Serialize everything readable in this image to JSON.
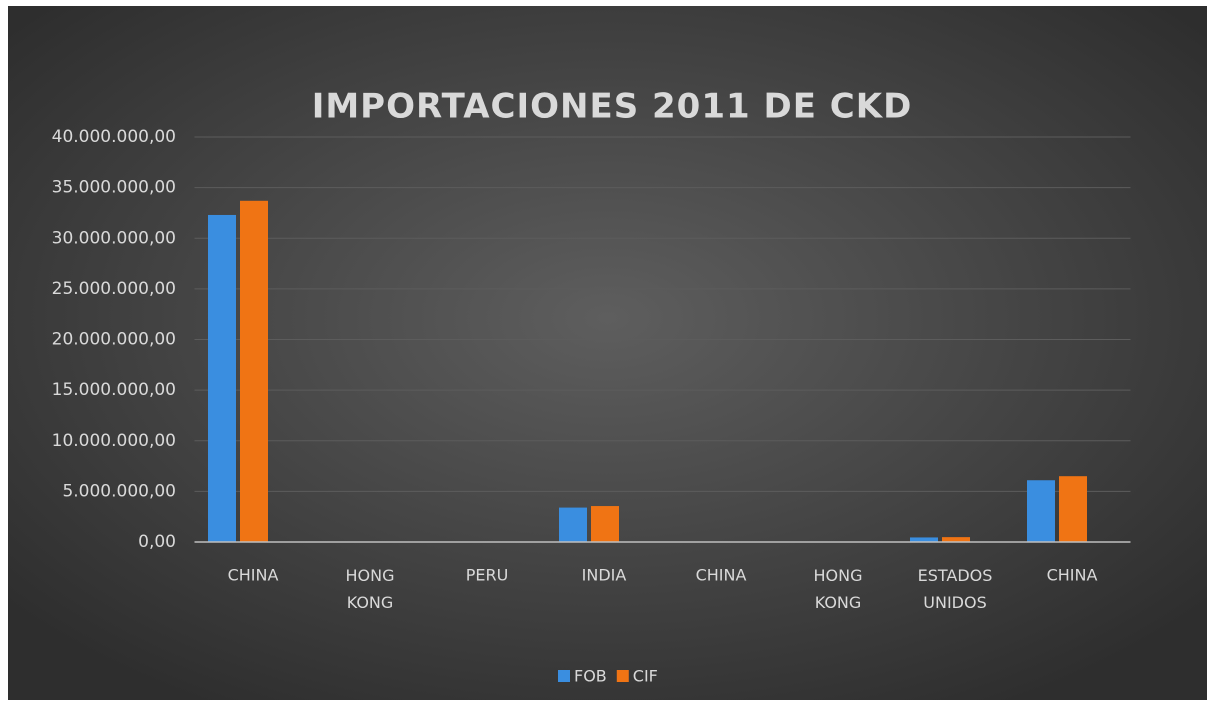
{
  "chart_data": {
    "type": "bar",
    "title": "IMPORTACIONES 2011 DE CKD",
    "categories": [
      "CHINA",
      "HONG KONG",
      "PERU",
      "INDIA",
      "CHINA",
      "HONG KONG",
      "ESTADOS UNIDOS",
      "CHINA"
    ],
    "series": [
      {
        "name": "FOB",
        "color": "#3a8ee0",
        "values": [
          32300000,
          30000,
          20000,
          3400000,
          20000,
          15000,
          450000,
          6100000
        ]
      },
      {
        "name": "CIF",
        "color": "#f07414",
        "values": [
          33700000,
          40000,
          25000,
          3550000,
          25000,
          20000,
          480000,
          6500000
        ]
      }
    ],
    "ylim": [
      0,
      40000000
    ],
    "yticks": [
      {
        "value": 0,
        "label": "0,00"
      },
      {
        "value": 5000000,
        "label": "5.000.000,00"
      },
      {
        "value": 10000000,
        "label": "10.000.000,00"
      },
      {
        "value": 15000000,
        "label": "15.000.000,00"
      },
      {
        "value": 20000000,
        "label": "20.000.000,00"
      },
      {
        "value": 25000000,
        "label": "25.000.000,00"
      },
      {
        "value": 30000000,
        "label": "30.000.000,00"
      },
      {
        "value": 35000000,
        "label": "35.000.000,00"
      },
      {
        "value": 40000000,
        "label": "40.000.000,00"
      }
    ],
    "grid": true,
    "legend": "bottom"
  }
}
